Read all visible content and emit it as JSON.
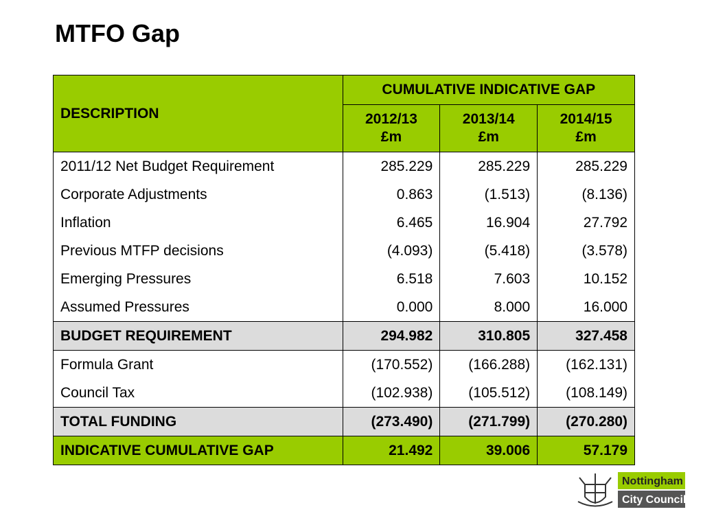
{
  "title": "MTFO Gap",
  "table": {
    "header": {
      "description": "DESCRIPTION",
      "group": "CUMULATIVE INDICATIVE GAP",
      "columns": [
        {
          "year": "2012/13",
          "unit": "£m"
        },
        {
          "year": "2013/14",
          "unit": "£m"
        },
        {
          "year": "2014/15",
          "unit": "£m"
        }
      ]
    },
    "rows": [
      {
        "label": "2011/12 Net Budget Requirement",
        "values": [
          "285.229",
          "285.229",
          "285.229"
        ],
        "style": "normal"
      },
      {
        "label": "Corporate Adjustments",
        "values": [
          "0.863",
          "(1.513)",
          "(8.136)"
        ],
        "style": "normal"
      },
      {
        "label": "Inflation",
        "values": [
          "6.465",
          "16.904",
          "27.792"
        ],
        "style": "normal"
      },
      {
        "label": "Previous MTFP decisions",
        "values": [
          "(4.093)",
          "(5.418)",
          "(3.578)"
        ],
        "style": "normal"
      },
      {
        "label": "Emerging Pressures",
        "values": [
          "6.518",
          "7.603",
          "10.152"
        ],
        "style": "normal"
      },
      {
        "label": "Assumed Pressures",
        "values": [
          "0.000",
          "8.000",
          "16.000"
        ],
        "style": "normal"
      },
      {
        "label": "BUDGET REQUIREMENT",
        "values": [
          "294.982",
          "310.805",
          "327.458"
        ],
        "style": "total"
      },
      {
        "label": "Formula Grant",
        "values": [
          "(170.552)",
          "(166.288)",
          "(162.131)"
        ],
        "style": "normal"
      },
      {
        "label": "Council Tax",
        "values": [
          "(102.938)",
          "(105.512)",
          "(108.149)"
        ],
        "style": "normal"
      },
      {
        "label": "TOTAL FUNDING",
        "values": [
          "(273.490)",
          "(271.799)",
          "(270.280)"
        ],
        "style": "total"
      },
      {
        "label": "INDICATIVE CUMULATIVE GAP",
        "values": [
          "21.492",
          "39.006",
          "57.179"
        ],
        "style": "gap"
      }
    ]
  },
  "logo": {
    "line1": "Nottingham",
    "line2": "City Council"
  }
}
